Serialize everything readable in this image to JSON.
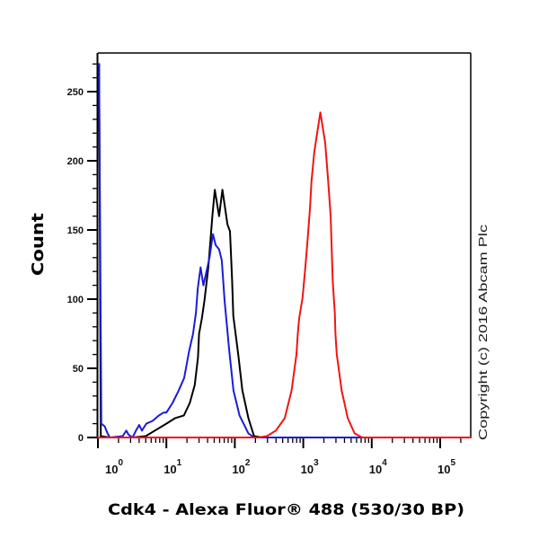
{
  "chart_data": {
    "type": "line",
    "title": "",
    "xlabel": "Cdk4 - Alexa Fluor® 488 (530/30 BP)",
    "ylabel": "Count",
    "xscale": "log",
    "xlim": [
      1,
      280000
    ],
    "ylim": [
      0,
      278
    ],
    "x_ticks": [
      1,
      10,
      100,
      1000,
      10000,
      100000
    ],
    "x_tick_labels": [
      {
        "base": "10",
        "exp": "0"
      },
      {
        "base": "10",
        "exp": "1"
      },
      {
        "base": "10",
        "exp": "2"
      },
      {
        "base": "10",
        "exp": "3"
      },
      {
        "base": "10",
        "exp": "4"
      },
      {
        "base": "10",
        "exp": "5"
      }
    ],
    "y_ticks": [
      0,
      50,
      100,
      150,
      200,
      250
    ],
    "y_tick_labels": [
      "0",
      "50",
      "100",
      "150",
      "200",
      "250"
    ],
    "y_minor_step": 10,
    "grid": false,
    "legend": null,
    "annotations": [
      {
        "text": "Copyright (c) 2016 Abcam Plc",
        "position": "right margin, rotated 90°"
      }
    ],
    "series": [
      {
        "name": "black",
        "color": "#000000",
        "points": [
          [
            1.04,
            270
          ],
          [
            1.1,
            1
          ],
          [
            1.5,
            0
          ],
          [
            3.2,
            0
          ],
          [
            5.0,
            1
          ],
          [
            6.8,
            5
          ],
          [
            10,
            10
          ],
          [
            13.5,
            14
          ],
          [
            18,
            16
          ],
          [
            22,
            25
          ],
          [
            26,
            38
          ],
          [
            29,
            58
          ],
          [
            30,
            75
          ],
          [
            33,
            86
          ],
          [
            36,
            99
          ],
          [
            41,
            123
          ],
          [
            47,
            160
          ],
          [
            51,
            179
          ],
          [
            59,
            160
          ],
          [
            66,
            179
          ],
          [
            78,
            154
          ],
          [
            85,
            149
          ],
          [
            91,
            115
          ],
          [
            95,
            88
          ],
          [
            112,
            60
          ],
          [
            129,
            34
          ],
          [
            158,
            14
          ],
          [
            191,
            1
          ],
          [
            251,
            0
          ],
          [
            280000,
            0
          ]
        ]
      },
      {
        "name": "blue",
        "color": "#1c1cd6",
        "points": [
          [
            1.04,
            270
          ],
          [
            1.12,
            10
          ],
          [
            1.26,
            8
          ],
          [
            1.38,
            3
          ],
          [
            1.5,
            0
          ],
          [
            2.3,
            1
          ],
          [
            2.6,
            5
          ],
          [
            2.8,
            2
          ],
          [
            3.2,
            0
          ],
          [
            3.6,
            5
          ],
          [
            4.0,
            9
          ],
          [
            4.4,
            5
          ],
          [
            5.1,
            10
          ],
          [
            6.3,
            12
          ],
          [
            7.8,
            16
          ],
          [
            9.1,
            18
          ],
          [
            10,
            18
          ],
          [
            12.3,
            25
          ],
          [
            14.8,
            33
          ],
          [
            18.2,
            43
          ],
          [
            21.4,
            62
          ],
          [
            24.5,
            75
          ],
          [
            27,
            90
          ],
          [
            28.8,
            108
          ],
          [
            31.6,
            123
          ],
          [
            34.7,
            110
          ],
          [
            38.9,
            121
          ],
          [
            42.7,
            130
          ],
          [
            47.9,
            147
          ],
          [
            52.5,
            139
          ],
          [
            58.9,
            136
          ],
          [
            64.6,
            128
          ],
          [
            70.8,
            99
          ],
          [
            83.2,
            62
          ],
          [
            95.5,
            34
          ],
          [
            117,
            16
          ],
          [
            158,
            3
          ],
          [
            191,
            0
          ],
          [
            280000,
            0
          ]
        ]
      },
      {
        "name": "red",
        "color": "#f01414",
        "points": [
          [
            1,
            0
          ],
          [
            219,
            0
          ],
          [
            295,
            1
          ],
          [
            398,
            5
          ],
          [
            537,
            14
          ],
          [
            676,
            34
          ],
          [
            794,
            60
          ],
          [
            832,
            75
          ],
          [
            871,
            86
          ],
          [
            977,
            101
          ],
          [
            1072,
            123
          ],
          [
            1175,
            147
          ],
          [
            1259,
            167
          ],
          [
            1318,
            185
          ],
          [
            1445,
            206
          ],
          [
            1585,
            219
          ],
          [
            1778,
            235
          ],
          [
            2089,
            213
          ],
          [
            2291,
            188
          ],
          [
            2512,
            160
          ],
          [
            2570,
            145
          ],
          [
            2692,
            113
          ],
          [
            2884,
            90
          ],
          [
            2950,
            75
          ],
          [
            3090,
            60
          ],
          [
            3631,
            34
          ],
          [
            4467,
            14
          ],
          [
            5623,
            3
          ],
          [
            7244,
            0
          ],
          [
            280000,
            0
          ]
        ]
      }
    ]
  }
}
